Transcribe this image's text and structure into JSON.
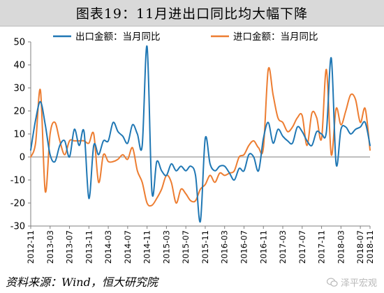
{
  "figure": {
    "title": "图表19：11月进出口同比均大幅下降",
    "source": "资料来源：Wind，恒大研究院",
    "watermark": "泽平宏观"
  },
  "chart_data": {
    "type": "line",
    "ylim": [
      -30,
      50
    ],
    "yticks": [
      50,
      40,
      30,
      20,
      10,
      0,
      -10,
      -20,
      -30
    ],
    "xtick_labels": [
      "2012-11",
      "2013-03",
      "2013-07",
      "2013-11",
      "2014-03",
      "2014-07",
      "2014-11",
      "2015-03",
      "2015-07",
      "2015-11",
      "2016-03",
      "2016-07",
      "2016-11",
      "2017-03",
      "2017-07",
      "2017-11",
      "2018-03",
      "2018-07",
      "2018-11"
    ],
    "legend_position": "top",
    "series": [
      {
        "name": "出口金额：当月同比",
        "color": "#1f77b4",
        "values": [
          3,
          16,
          24,
          14,
          1,
          -2,
          5,
          7,
          0,
          12,
          5,
          11,
          -18,
          5,
          1,
          7,
          7,
          15,
          11,
          9,
          6,
          14,
          10,
          5,
          48,
          -15,
          -2,
          -6,
          -8,
          -3,
          -6,
          -4,
          -6,
          -4,
          -8,
          -28,
          8,
          -3,
          -6,
          -4,
          -4,
          -7,
          -10,
          -5,
          -6,
          1,
          0,
          -6,
          8,
          15,
          6,
          12,
          9,
          7,
          6,
          13,
          11,
          7,
          5,
          11,
          10,
          11,
          43,
          -3,
          12,
          13,
          10,
          12,
          13,
          15,
          5
        ],
        "x_labels_fully_known": false
      },
      {
        "name": "进口金额：当月同比",
        "color": "#ed7d31",
        "values": [
          0,
          6,
          29,
          -15,
          10,
          15,
          7,
          1,
          7,
          7,
          7,
          7,
          6,
          10,
          -11,
          1,
          -2,
          -2,
          -1,
          1,
          -1,
          4,
          -6,
          -11,
          -20,
          -21,
          -18,
          -14,
          -8,
          -11,
          -20,
          -14,
          -16,
          -19,
          -19,
          -14,
          -12,
          -8,
          -11,
          -7,
          -8,
          -7,
          -6,
          0,
          1,
          5,
          7,
          4,
          4,
          38,
          27,
          17,
          15,
          11,
          13,
          17,
          18,
          5,
          19,
          17,
          8,
          38,
          1,
          21,
          14,
          20,
          27,
          25,
          15,
          21,
          3
        ]
      }
    ]
  }
}
